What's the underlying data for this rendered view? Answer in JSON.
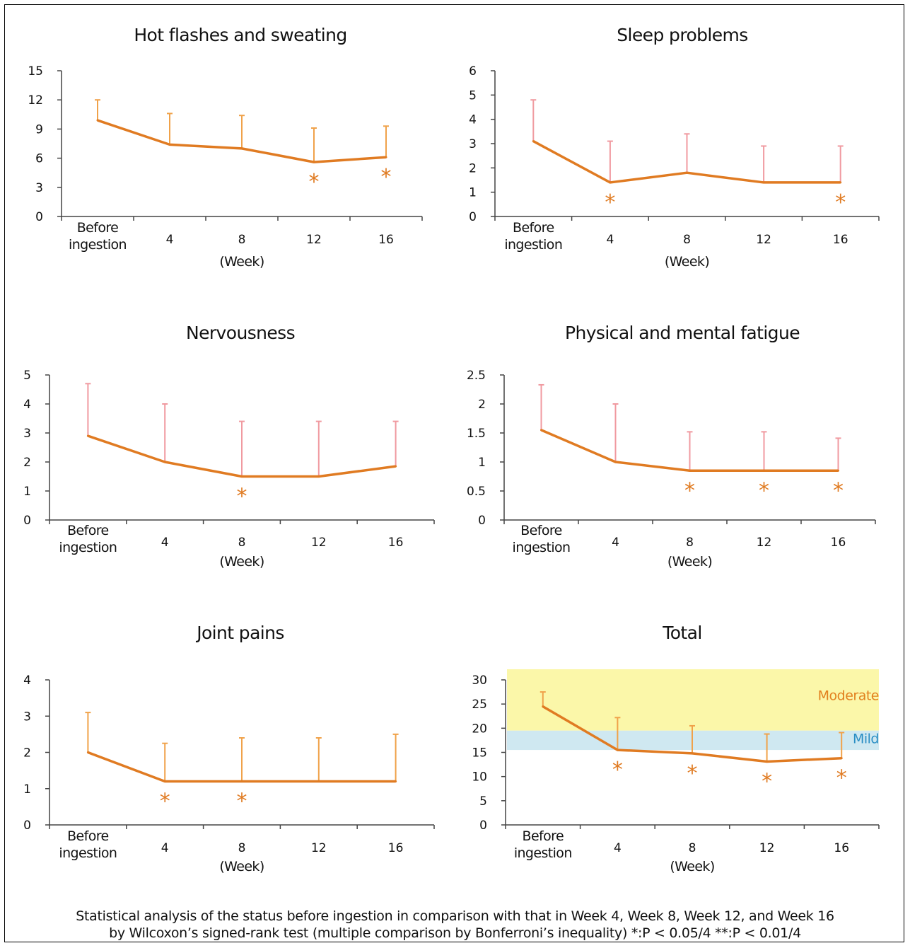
{
  "chart_data": [
    {
      "type": "line",
      "title": "Hot flashes and sweating",
      "categories": [
        "Before\ningestion",
        "4",
        "8",
        "12",
        "16"
      ],
      "xlabel": "(Week)",
      "ylim": [
        0,
        15
      ],
      "yticks": [
        "0",
        "3",
        "6",
        "9",
        "12",
        "15"
      ],
      "series": [
        {
          "values": [
            9.9,
            7.4,
            7.0,
            5.6,
            6.1
          ],
          "error_upper": [
            12.0,
            10.6,
            10.4,
            9.1,
            9.3
          ]
        }
      ],
      "significance": [
        "",
        "",
        "",
        "*",
        "*"
      ],
      "bands": []
    },
    {
      "type": "line",
      "title": "Sleep problems",
      "categories": [
        "Before\ningestion",
        "4",
        "8",
        "12",
        "16"
      ],
      "xlabel": "(Week)",
      "ylim": [
        0,
        6
      ],
      "yticks": [
        "0",
        "1",
        "2",
        "3",
        "4",
        "5",
        "6"
      ],
      "series": [
        {
          "values": [
            3.1,
            1.4,
            1.8,
            1.4,
            1.4
          ],
          "error_upper": [
            4.8,
            3.1,
            3.4,
            2.9,
            2.9
          ]
        }
      ],
      "significance": [
        "",
        "*",
        "",
        "",
        "*"
      ],
      "bands": []
    },
    {
      "type": "line",
      "title": "Nervousness",
      "categories": [
        "Before\ningestion",
        "4",
        "8",
        "12",
        "16"
      ],
      "xlabel": "(Week)",
      "ylim": [
        0,
        5
      ],
      "yticks": [
        "0",
        "1",
        "2",
        "3",
        "4",
        "5"
      ],
      "series": [
        {
          "values": [
            2.9,
            2.0,
            1.5,
            1.5,
            1.85
          ],
          "error_upper": [
            4.7,
            4.0,
            3.4,
            3.4,
            3.4
          ]
        }
      ],
      "significance": [
        "",
        "",
        "*",
        "",
        ""
      ],
      "bands": []
    },
    {
      "type": "line",
      "title": "Physical and mental fatigue",
      "categories": [
        "Before\ningestion",
        "4",
        "8",
        "12",
        "16"
      ],
      "xlabel": "(Week)",
      "ylim": [
        0,
        2.5
      ],
      "yticks": [
        "0",
        "0.5",
        "1",
        "1.5",
        "2",
        "2.5"
      ],
      "series": [
        {
          "values": [
            1.55,
            1.0,
            0.85,
            0.85,
            0.85
          ],
          "error_upper": [
            2.33,
            2.0,
            1.52,
            1.52,
            1.41
          ]
        }
      ],
      "significance": [
        "",
        "",
        "*",
        "*",
        "*"
      ],
      "bands": []
    },
    {
      "type": "line",
      "title": "Joint pains",
      "categories": [
        "Before\ningestion",
        "4",
        "8",
        "12",
        "16"
      ],
      "xlabel": "(Week)",
      "ylim": [
        0,
        4
      ],
      "yticks": [
        "0",
        "1",
        "2",
        "3",
        "4"
      ],
      "series": [
        {
          "values": [
            2.0,
            1.2,
            1.2,
            1.2,
            1.2
          ],
          "error_upper": [
            3.1,
            2.25,
            2.4,
            2.4,
            2.5
          ]
        }
      ],
      "significance": [
        "",
        "*",
        "*",
        "",
        ""
      ],
      "bands": []
    },
    {
      "type": "line",
      "title": "Total",
      "categories": [
        "Before\ningestion",
        "4",
        "8",
        "12",
        "16"
      ],
      "xlabel": "(Week)",
      "ylim": [
        0,
        30
      ],
      "yticks": [
        "0",
        "5",
        "10",
        "15",
        "20",
        "25",
        "30"
      ],
      "series": [
        {
          "values": [
            24.5,
            15.5,
            14.8,
            13.1,
            13.8
          ],
          "error_upper": [
            27.5,
            22.2,
            20.5,
            18.8,
            19.1
          ]
        }
      ],
      "significance": [
        "",
        "*",
        "*",
        "*",
        "*"
      ],
      "bands": [
        {
          "label": "Moderate",
          "from": 19.5,
          "to": 32.2,
          "color": "#fbf7a9",
          "label_color": "#e2811f"
        },
        {
          "label": "Mild",
          "from": 15.5,
          "to": 19.5,
          "color": "#cfe8f1",
          "label_color": "#2a8ec4"
        }
      ]
    }
  ],
  "footnote": {
    "line1": "Statistical analysis of the status before ingestion in comparison with that in Week 4, Week 8, Week 12, and Week 16",
    "line2": "by Wilcoxon’s signed-rank test (multiple comparison by Bonferroni’s inequality) *:P < 0.05/4 **:P < 0.01/4"
  },
  "colors": {
    "line": "#e07b22",
    "error_bar_orange": "#f0a24a",
    "error_bar_pink": "#f09aa0",
    "asterisk": "#e07b22",
    "axis": "#444444"
  }
}
